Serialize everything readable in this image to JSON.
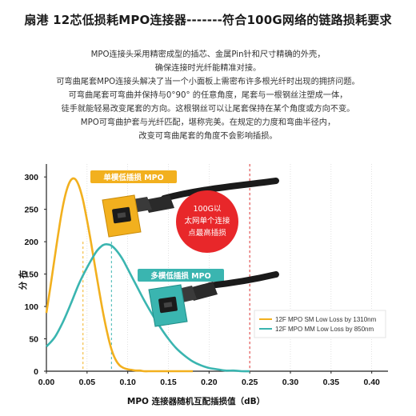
{
  "header": {
    "title": "扇港 12芯低损耗MPO连接器-------符合100G网络的链路损耗要求"
  },
  "description": [
    "MPO连接头采用精密成型的插芯、金属Pin针和尺寸精确的外壳，",
    "确保连接时光纤能精准对接。",
    "可弯曲尾套MPO连接头解决了当一个小面板上需密布许多根光纤时出现的拥挤问题。",
    "可弯曲尾套可弯曲并保持与0°90° 的任意角度，尾套与一根钢丝注塑成一体，",
    "徒手就能轻易改变尾套的方向。这根钢丝可以让尾套保持在某个角度或方向不变。",
    "MPO可弯曲护套与光纤匹配，堪称完美。在规定的力度和弯曲半径内，",
    "改变可弯曲尾套的角度不会影响插损。"
  ],
  "colors": {
    "sm": "#f2b01e",
    "mm": "#3ab5b0",
    "threshold": "#e03030",
    "bubble": "#e8272a",
    "grid": "#cfcfcf"
  },
  "annotations": {
    "sm_badge": "单模低插损 MPO",
    "mm_badge": "多模低插损 MPO",
    "bubble": [
      "100G以",
      "太网单个连接",
      "点最高插损"
    ]
  },
  "icons": [
    "mpo-connector-sm-yellow",
    "mpo-connector-mm-aqua"
  ],
  "chart_data": {
    "type": "line",
    "title": "",
    "xlabel": "MPO 连接器随机互配插损值（dB）",
    "ylabel": "分 布",
    "xlim": [
      0,
      0.42
    ],
    "ylim": [
      0,
      320
    ],
    "xticks": [
      0.0,
      0.05,
      0.1,
      0.15,
      0.2,
      0.25,
      0.3,
      0.35,
      0.4
    ],
    "yticks": [
      0,
      50,
      100,
      150,
      200,
      250,
      300
    ],
    "xtick_labels": [
      "0.00",
      "0.05",
      "0.10",
      "0.15",
      "0.20",
      "0.25",
      "0.30",
      "0.35",
      "0.40"
    ],
    "ytick_labels": [
      "0",
      "50",
      "100",
      "150",
      "200",
      "250",
      "300"
    ],
    "grid": "vertical",
    "legend_position": "lower-right",
    "series": [
      {
        "name": "12F MPO SM Low Loss by 1310nm",
        "color": "#f2b01e",
        "x": [
          0.0,
          0.005,
          0.01,
          0.015,
          0.02,
          0.025,
          0.03,
          0.035,
          0.04,
          0.045,
          0.05,
          0.055,
          0.06,
          0.065,
          0.07,
          0.075,
          0.08,
          0.085,
          0.09,
          0.095,
          0.1,
          0.105,
          0.11,
          0.115,
          0.12,
          0.125,
          0.13,
          0.14,
          0.15,
          0.16,
          0.17,
          0.18
        ],
        "y": [
          90,
          131,
          174,
          216,
          253,
          280,
          295,
          297,
          286,
          264,
          233,
          198,
          160,
          123,
          88,
          58,
          34,
          18,
          9,
          5,
          3,
          2,
          1,
          1,
          0,
          0,
          0,
          0,
          0,
          0,
          0,
          0
        ]
      },
      {
        "name": "12F MPO MM Low Loss by 850nm",
        "color": "#3ab5b0",
        "x": [
          0.0,
          0.01,
          0.02,
          0.03,
          0.04,
          0.05,
          0.06,
          0.065,
          0.07,
          0.075,
          0.08,
          0.085,
          0.09,
          0.095,
          0.1,
          0.11,
          0.12,
          0.13,
          0.14,
          0.15,
          0.16,
          0.17,
          0.18,
          0.19,
          0.2,
          0.21,
          0.22,
          0.23,
          0.24,
          0.25
        ],
        "y": [
          38,
          52,
          75,
          104,
          135,
          160,
          182,
          190,
          195,
          196,
          194,
          188,
          180,
          170,
          158,
          134,
          110,
          88,
          68,
          50,
          35,
          24,
          15,
          9,
          5,
          3,
          1,
          1,
          0,
          0
        ]
      }
    ],
    "reference_lines": [
      {
        "x": 0.045,
        "color": "#f2b01e",
        "style": "dashed"
      },
      {
        "x": 0.08,
        "color": "#3ab5b0",
        "style": "dashed"
      },
      {
        "x": 0.25,
        "color": "#e03030",
        "style": "dashed"
      }
    ]
  }
}
